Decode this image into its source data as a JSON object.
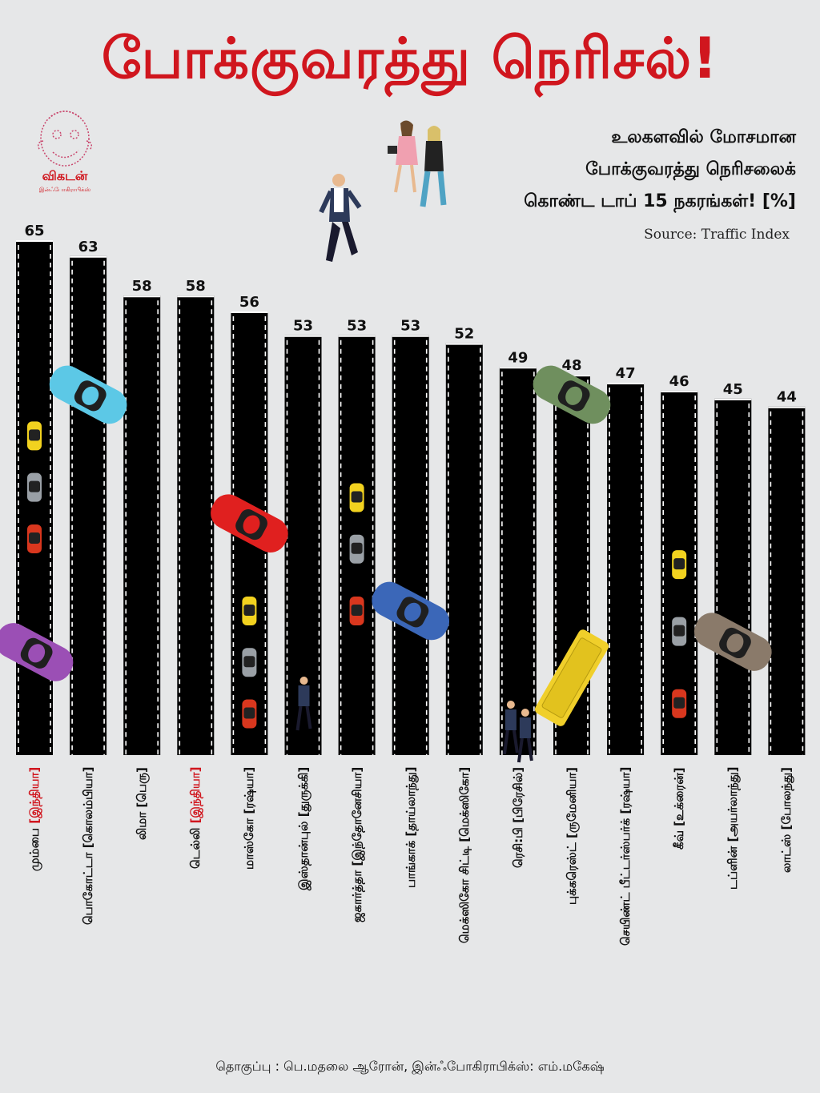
{
  "title": "போக்குவரத்து நெரிசல்!",
  "subtitle": {
    "line1": "உலகளவில் மோசமான",
    "line2": "போக்குவரத்து நெரிசலைக்",
    "line3": "கொண்ட டாப் 15 நகரங்கள்! [%]"
  },
  "source": "Source: Traffic Index",
  "logo": {
    "text": "விகடன்",
    "sub": "இன்ஃபோகிராபிக்ஸ்"
  },
  "credit": "தொகுப்பு : பெ.மதலை ஆரோன், இன்ஃபோகிராபிக்ஸ்: எம்.மகேஷ்",
  "colors": {
    "title": "#d0161e",
    "bar": "#000000",
    "highlight": "#d0161e",
    "background": "#e6e7e8"
  },
  "chart_data": {
    "type": "bar",
    "title": "போக்குவரத்து நெரிசல்!",
    "ylabel": "%",
    "categories": [
      {
        "city": "மும்பை",
        "country": "[இந்தியா]",
        "highlight": true
      },
      {
        "city": "பொகோட்டா",
        "country": "[கொலம்பியா]",
        "highlight": false
      },
      {
        "city": "லிமா",
        "country": "[பெரு]",
        "highlight": false
      },
      {
        "city": "டெல்லி",
        "country": "[இந்தியா]",
        "highlight": true
      },
      {
        "city": "மாஸ்கோ",
        "country": "[ரஷ்யா]",
        "highlight": false
      },
      {
        "city": "இஸ்தான்புல்",
        "country": "[துருக்கி]",
        "highlight": false
      },
      {
        "city": "ஜகார்த்தா",
        "country": "[இந்தோனேசியா]",
        "highlight": false
      },
      {
        "city": "பாங்காக்",
        "country": "[தாய்லாந்து]",
        "highlight": false
      },
      {
        "city": "மெக்ஸிகோ சிட்டி",
        "country": "[மெக்ஸிகோ]",
        "highlight": false
      },
      {
        "city": "ரெசி:பி",
        "country": "[பிரேசில்]",
        "highlight": false
      },
      {
        "city": "புக்கரெஸ்ட்",
        "country": "[ருமேனியா]",
        "highlight": false
      },
      {
        "city": "செயிண்ட் பீட்டர்ஸ்பர்க்",
        "country": "[ரஷ்யா]",
        "highlight": false
      },
      {
        "city": "கீவ்",
        "country": "[உக்ரைன்]",
        "highlight": false
      },
      {
        "city": "டப்ளின்",
        "country": "[அயர்லாந்து]",
        "highlight": false
      },
      {
        "city": "லாட்ஸ்",
        "country": "[போலந்து]",
        "highlight": false
      }
    ],
    "values": [
      65,
      63,
      58,
      58,
      56,
      53,
      53,
      53,
      52,
      49,
      48,
      47,
      46,
      45,
      44
    ]
  },
  "decorations": {
    "cars": [
      {
        "bar": 0,
        "color": "#f2d21f",
        "kind": "small",
        "at": 0.38
      },
      {
        "bar": 0,
        "color": "#9aa0a6",
        "kind": "small",
        "at": 0.48
      },
      {
        "bar": 0,
        "color": "#d9371e",
        "kind": "small",
        "at": 0.58
      },
      {
        "bar": 1,
        "color": "#5cc8e6",
        "kind": "big",
        "at": 0.3
      },
      {
        "bar": 0,
        "color": "#9b4fb5",
        "kind": "big",
        "at": 0.8
      },
      {
        "bar": 4,
        "color": "#e0201f",
        "kind": "big",
        "at": 0.55
      },
      {
        "bar": 4,
        "color": "#f2d21f",
        "kind": "small",
        "at": 0.72
      },
      {
        "bar": 4,
        "color": "#9aa0a6",
        "kind": "small",
        "at": 0.82
      },
      {
        "bar": 4,
        "color": "#d9371e",
        "kind": "small",
        "at": 0.92
      },
      {
        "bar": 6,
        "color": "#f2d21f",
        "kind": "small",
        "at": 0.5
      },
      {
        "bar": 6,
        "color": "#9aa0a6",
        "kind": "small",
        "at": 0.6
      },
      {
        "bar": 6,
        "color": "#d9371e",
        "kind": "small",
        "at": 0.72
      },
      {
        "bar": 7,
        "color": "#3b67b8",
        "kind": "big",
        "at": 0.72
      },
      {
        "bar": 10,
        "color": "#6f8f5e",
        "kind": "big",
        "at": 0.3
      },
      {
        "bar": 10,
        "color": "#f0cf2a",
        "kind": "bus",
        "at": 0.85
      },
      {
        "bar": 12,
        "color": "#f2d21f",
        "kind": "small",
        "at": 0.63
      },
      {
        "bar": 12,
        "color": "#9aa0a6",
        "kind": "small",
        "at": 0.76
      },
      {
        "bar": 12,
        "color": "#d9371e",
        "kind": "small",
        "at": 0.9
      },
      {
        "bar": 13,
        "color": "#8a7a6a",
        "kind": "big",
        "at": 0.78
      }
    ]
  }
}
